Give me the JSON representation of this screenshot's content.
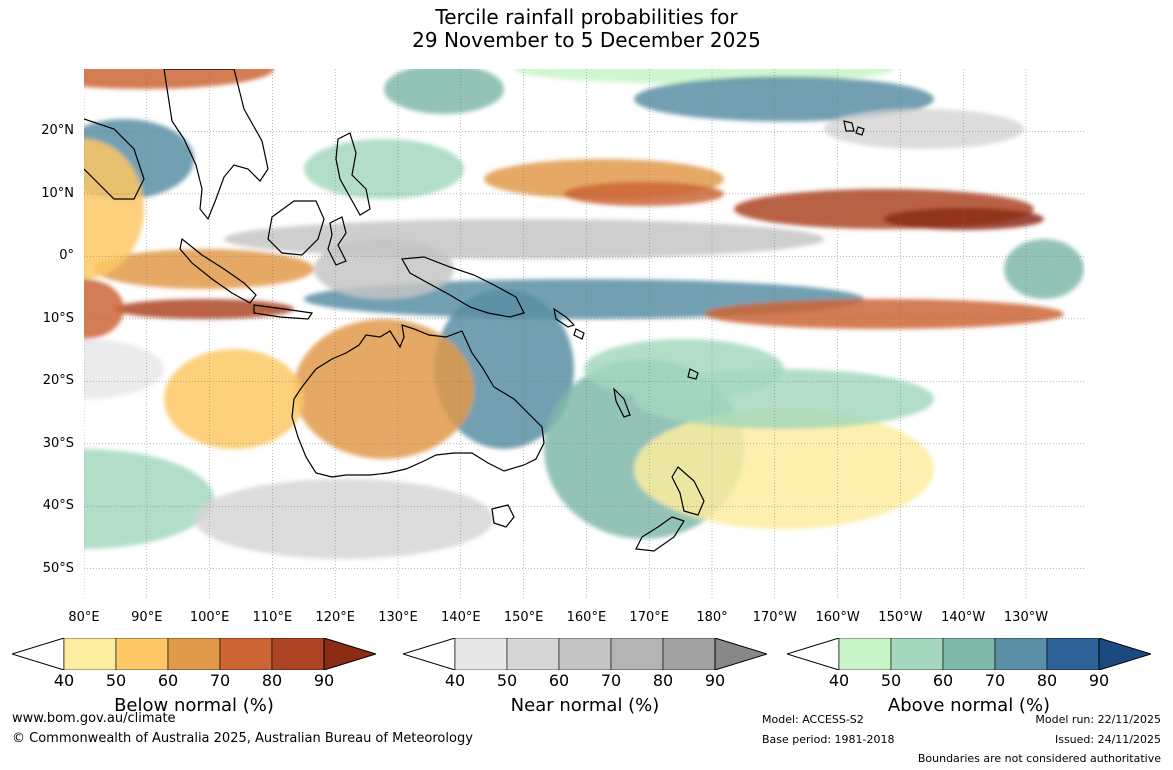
{
  "title": {
    "line1": "Tercile rainfall probabilities for",
    "line2": "29 November to 5 December 2025"
  },
  "axes": {
    "lat_labels": [
      "20°N",
      "10°N",
      "0°",
      "10°S",
      "20°S",
      "30°S",
      "40°S",
      "50°S"
    ],
    "lon_labels": [
      "80°E",
      "90°E",
      "100°E",
      "110°E",
      "120°E",
      "130°E",
      "140°E",
      "150°E",
      "160°E",
      "170°E",
      "180°",
      "170°W",
      "160°W",
      "150°W",
      "140°W",
      "130°W"
    ]
  },
  "colorbars": [
    {
      "title": "Below normal (%)",
      "ticks": [
        "40",
        "50",
        "60",
        "70",
        "80",
        "90"
      ],
      "colors": [
        "#fdeda0",
        "#fdc865",
        "#e09a4a",
        "#cd6535",
        "#ad4525",
        "#8c2c15"
      ]
    },
    {
      "title": "Near normal (%)",
      "ticks": [
        "40",
        "50",
        "60",
        "70",
        "80",
        "90"
      ],
      "colors": [
        "#e8e8e8",
        "#d6d6d6",
        "#c5c5c5",
        "#b4b4b4",
        "#a2a2a2",
        "#888888"
      ]
    },
    {
      "title": "Above normal (%)",
      "ticks": [
        "40",
        "50",
        "60",
        "70",
        "80",
        "90"
      ],
      "colors": [
        "#c8f5c8",
        "#a5d8bd",
        "#80b8aa",
        "#5a8fa5",
        "#2f6199",
        "#1a4a80"
      ]
    }
  ],
  "footer": {
    "website": "www.bom.gov.au/climate",
    "copyright": "© Commonwealth of Australia 2025, Australian Bureau of Meteorology",
    "model": "Model: ACCESS-S2",
    "base_period": "Base period: 1981-2018",
    "model_run": "Model run: 22/11/2025",
    "issued": "Issued: 24/11/2025",
    "disclaimer": "Boundaries are not considered authoritative"
  }
}
